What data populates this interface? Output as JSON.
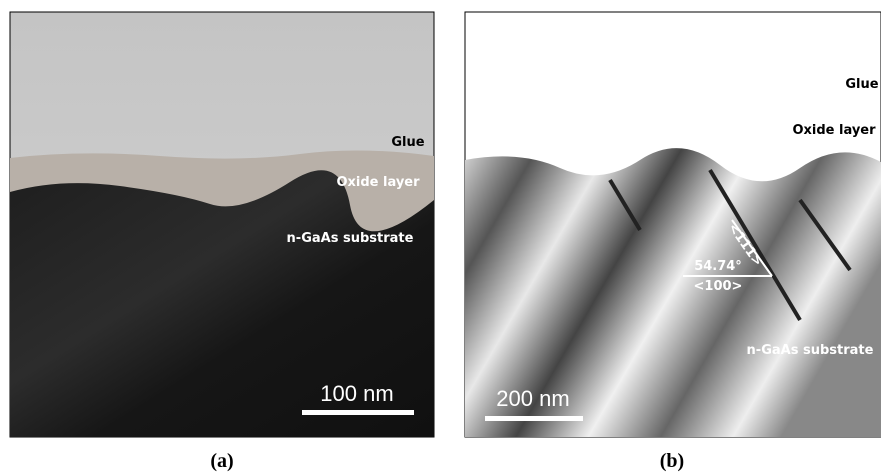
{
  "panels": [
    {
      "caption": "(a)",
      "labels": {
        "glue": "Glue",
        "oxide": "Oxide layer",
        "substrate": "n-GaAs substrate"
      },
      "scale_bar": "100 nm"
    },
    {
      "caption": "(b)",
      "labels": {
        "glue": "Glue",
        "oxide": "Oxide layer",
        "substrate": "n-GaAs substrate",
        "angle": "54.74°",
        "dir100": "<100>",
        "dir111": "<111>"
      },
      "scale_bar": "200 nm"
    }
  ]
}
